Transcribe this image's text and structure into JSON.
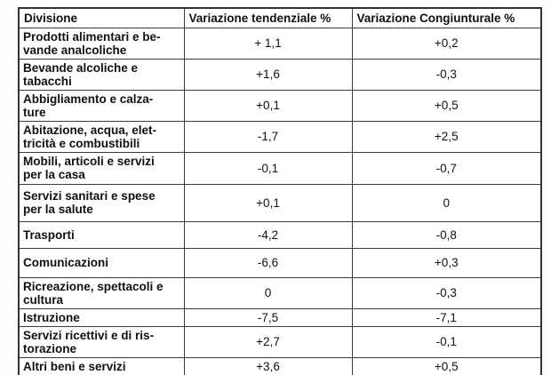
{
  "colors": {
    "background": "#ffffff",
    "border": "#3c3c3c",
    "text": "#111111"
  },
  "table": {
    "columns": [
      "Divisione",
      "Variazione tendenziale %",
      "Variazione Congiunturale %"
    ],
    "rows": [
      {
        "division": "Prodotti alimentari e be-\nvande analcoliche",
        "tendenziale": "+ 1,1",
        "congiunturale": "+0,2"
      },
      {
        "division": "Bevande alcoliche e\ntabacchi",
        "tendenziale": "+1,6",
        "congiunturale": "-0,3"
      },
      {
        "division": "Abbigliamento e calza-\nture",
        "tendenziale": "+0,1",
        "congiunturale": "+0,5"
      },
      {
        "division": "Abitazione, acqua, elet-\ntricità e combustibili",
        "tendenziale": "-1,7",
        "congiunturale": "+2,5"
      },
      {
        "division": "Mobili, articoli e servizi\nper la casa",
        "tendenziale": "-0,1",
        "congiunturale": "-0,7"
      },
      {
        "division": "Servizi sanitari e spese\nper la salute",
        "tendenziale": "+0,1",
        "congiunturale": "0"
      },
      {
        "division": "Trasporti",
        "tendenziale": "-4,2",
        "congiunturale": "-0,8"
      },
      {
        "division": "Comunicazioni",
        "tendenziale": "-6,6",
        "congiunturale": "+0,3"
      },
      {
        "division": "Ricreazione, spettacoli e\ncultura",
        "tendenziale": "0",
        "congiunturale": "-0,3"
      },
      {
        "division": "Istruzione",
        "tendenziale": "-7,5",
        "congiunturale": "-7,1"
      },
      {
        "division": "Servizi ricettivi e di ris-\ntorazione",
        "tendenziale": "+2,7",
        "congiunturale": "-0,1"
      },
      {
        "division": "Altri beni e servizi",
        "tendenziale": "+3,6",
        "congiunturale": "+0,5"
      }
    ]
  }
}
